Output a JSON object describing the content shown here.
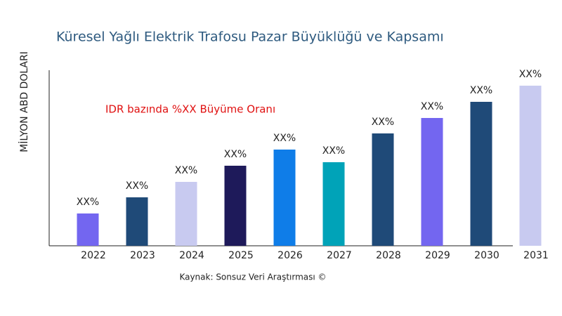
{
  "chart_data": {
    "type": "bar",
    "title": "Küresel Yağlı Elektrik Trafosu Pazar Büyüklüğü ve Kapsamı",
    "y_label": "MİLYON ABD DOLARI",
    "annotation": "IDR bazında %XX Büyüme Oranı",
    "source": "Kaynak: Sonsuz Veri Araştırması ©",
    "categories": [
      "2022",
      "2023",
      "2024",
      "2025",
      "2026",
      "2027",
      "2028",
      "2029",
      "2030",
      "2031"
    ],
    "values": [
      46,
      69,
      91,
      114,
      137,
      119,
      160,
      182,
      205,
      228
    ],
    "value_labels": [
      "XX%",
      "XX%",
      "XX%",
      "XX%",
      "XX%",
      "XX%",
      "XX%",
      "XX%",
      "XX%",
      "XX%"
    ],
    "colors": [
      "#7366f0",
      "#1f4a78",
      "#c8caf0",
      "#1e1a5a",
      "#0f7de8",
      "#00a3b8",
      "#1f4a78",
      "#7366f0",
      "#1f4a78",
      "#c8caf0"
    ],
    "ylim": [
      0,
      250
    ]
  }
}
